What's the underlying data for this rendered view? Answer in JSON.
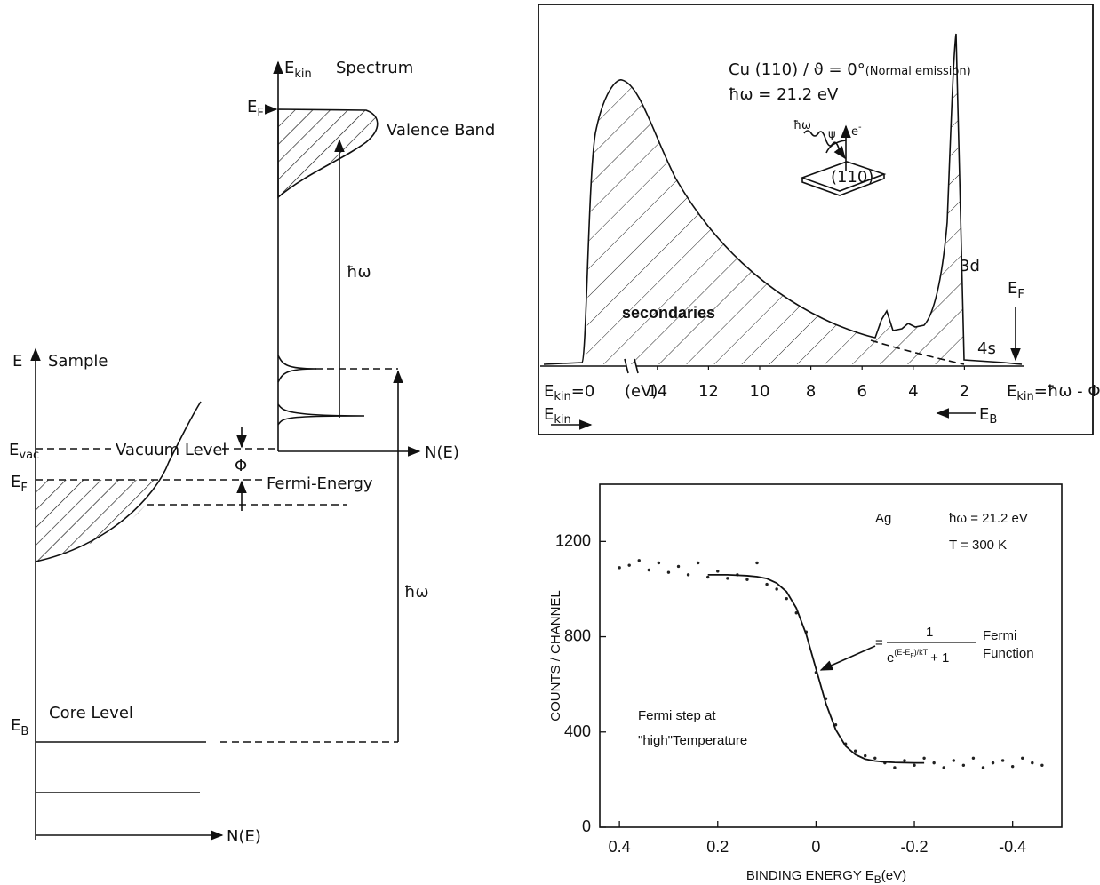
{
  "sample_diagram": {
    "energy_axis": "E",
    "sample": "Sample",
    "e_vac": {
      "main": "E",
      "sub": "vac"
    },
    "vacuum_level": "Vacuum Level",
    "e_f": {
      "main": "E",
      "sub": "F"
    },
    "fermi_energy": "Fermi-Energy",
    "phi": "Φ",
    "e_b": {
      "main": "E",
      "sub": "B"
    },
    "core_level": "Core Level",
    "n_e_bottom": "N(E)",
    "e_kin": {
      "main": "E",
      "sub": "kin"
    },
    "spectrum": "Spectrum",
    "n_e_spectrum": "N(E)",
    "e_f_spectrum": {
      "main": "E",
      "sub": "F"
    },
    "valence_band": "Valence Band",
    "hw_photon": "ħω",
    "hw_level": "ħω"
  },
  "chart_data": [
    {
      "type": "spectrum",
      "sample": "Cu (110) / ϑ = 0°",
      "emission": "(Normal emission)",
      "photon": "ħω = 21.2 eV",
      "inset": {
        "photon": "ħω",
        "angle": "ψ",
        "electron": {
          "main": "e",
          "sup": "-"
        },
        "surface": "(110)"
      },
      "peak_3d": "3d",
      "peak_4s": "4s",
      "e_f": {
        "main": "E",
        "sub": "F"
      },
      "secondaries": "secondaries",
      "left_end": {
        "main": "E",
        "sub": "kin",
        "tail": "=0"
      },
      "unit": "(eV)",
      "right_end": {
        "main": "E",
        "sub": "kin",
        "tail": "=ħω - Φ"
      },
      "kin_arrow": {
        "main": "E",
        "sub": "kin"
      },
      "binding_arrow": {
        "main": "E",
        "sub": "B"
      },
      "xlim": [
        15,
        0
      ],
      "xticks": [
        14,
        12,
        10,
        8,
        6,
        4,
        2
      ]
    },
    {
      "type": "scatter",
      "y_label": "COUNTS / CHANNEL",
      "x_label": {
        "text": "BINDING ENERGY  E",
        "sub": "B",
        "unit": "(eV)"
      },
      "xlim": [
        0.44,
        -0.5
      ],
      "xticks": [
        0.4,
        0.2,
        0,
        -0.2,
        -0.4
      ],
      "ylim": [
        0,
        1440
      ],
      "yticks": [
        0,
        400,
        800,
        1200
      ],
      "color": "#222222",
      "x": [
        0.4,
        0.38,
        0.36,
        0.34,
        0.32,
        0.3,
        0.28,
        0.26,
        0.24,
        0.22,
        0.2,
        0.18,
        0.16,
        0.14,
        0.12,
        0.1,
        0.08,
        0.06,
        0.04,
        0.02,
        0.0,
        -0.02,
        -0.04,
        -0.06,
        -0.08,
        -0.1,
        -0.12,
        -0.14,
        -0.16,
        -0.18,
        -0.2,
        -0.22,
        -0.24,
        -0.26,
        -0.28,
        -0.3,
        -0.32,
        -0.34,
        -0.36,
        -0.38,
        -0.4,
        -0.42,
        -0.44,
        -0.46
      ],
      "values": [
        1090,
        1100,
        1120,
        1080,
        1110,
        1070,
        1095,
        1060,
        1110,
        1050,
        1075,
        1045,
        1060,
        1040,
        1110,
        1020,
        1000,
        960,
        900,
        820,
        650,
        540,
        430,
        350,
        320,
        300,
        290,
        270,
        250,
        280,
        260,
        290,
        270,
        250,
        280,
        260,
        290,
        250,
        270,
        280,
        255,
        290,
        270,
        260
      ],
      "fit": {
        "color": "#111111",
        "x": [
          0.22,
          0.2,
          0.18,
          0.16,
          0.14,
          0.12,
          0.1,
          0.08,
          0.06,
          0.04,
          0.02,
          0.0,
          -0.02,
          -0.04,
          -0.06,
          -0.08,
          -0.1,
          -0.12,
          -0.14,
          -0.16,
          -0.18,
          -0.2,
          -0.22
        ],
        "values": [
          1060,
          1060,
          1060,
          1058,
          1056,
          1052,
          1044,
          1025,
          989,
          920,
          810,
          665,
          520,
          410,
          341,
          305,
          286,
          278,
          274,
          272,
          271,
          270,
          270
        ]
      },
      "annotations": {
        "sample": "Ag",
        "photon": "ħω = 21.2  eV",
        "temperature": "T = 300 K",
        "step_1": "Fermi step at",
        "step_2": "\"high\"Temperature",
        "formula": {
          "equals": "=",
          "numerator": "1",
          "base": "e",
          "exp_head": "(E-E",
          "exp_sub": "F",
          "exp_tail": ")/kT",
          "tail": "+ 1"
        },
        "function_1": "Fermi",
        "function_2": "Function"
      }
    }
  ]
}
